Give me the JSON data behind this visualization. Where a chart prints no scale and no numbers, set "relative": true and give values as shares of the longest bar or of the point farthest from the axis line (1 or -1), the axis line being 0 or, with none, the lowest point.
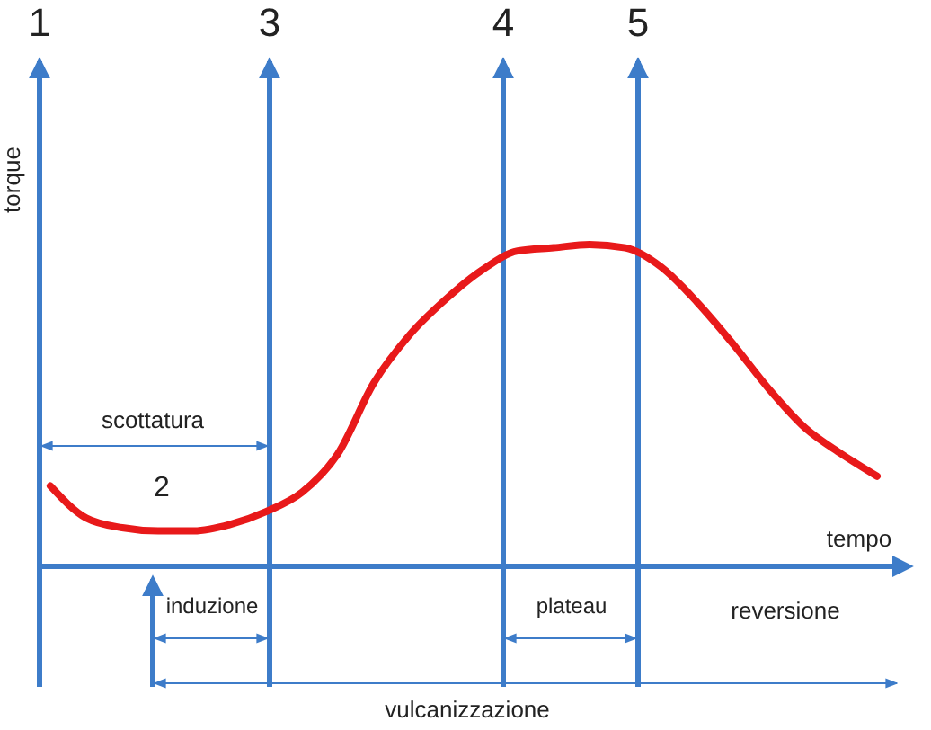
{
  "chart_data": {
    "type": "line",
    "relative": true,
    "xlabel": "tempo",
    "ylabel": "torque",
    "categories": [
      null,
      null,
      null,
      null,
      null,
      null,
      null,
      null,
      null,
      null,
      null,
      null,
      null,
      null,
      null,
      null,
      null,
      null,
      null,
      null,
      null,
      null,
      null,
      null
    ],
    "series": [
      {
        "color": "#e8191a",
        "values": [
          0.25,
          0.15,
          0.12,
          0.11,
          0.11,
          0.13,
          0.17,
          0.23,
          0.35,
          0.57,
          0.72,
          0.83,
          0.92,
          0.98,
          0.99,
          1.0,
          0.99,
          0.93,
          0.82,
          0.69,
          0.55,
          0.43,
          0.35,
          0.28
        ]
      }
    ],
    "annotations": [
      "1",
      "2",
      "3",
      "4",
      "5",
      "scottatura",
      "induzione",
      "plateau",
      "reversione",
      "vulcanizzazione"
    ],
    "marker": "none",
    "line_style": "solid"
  }
}
